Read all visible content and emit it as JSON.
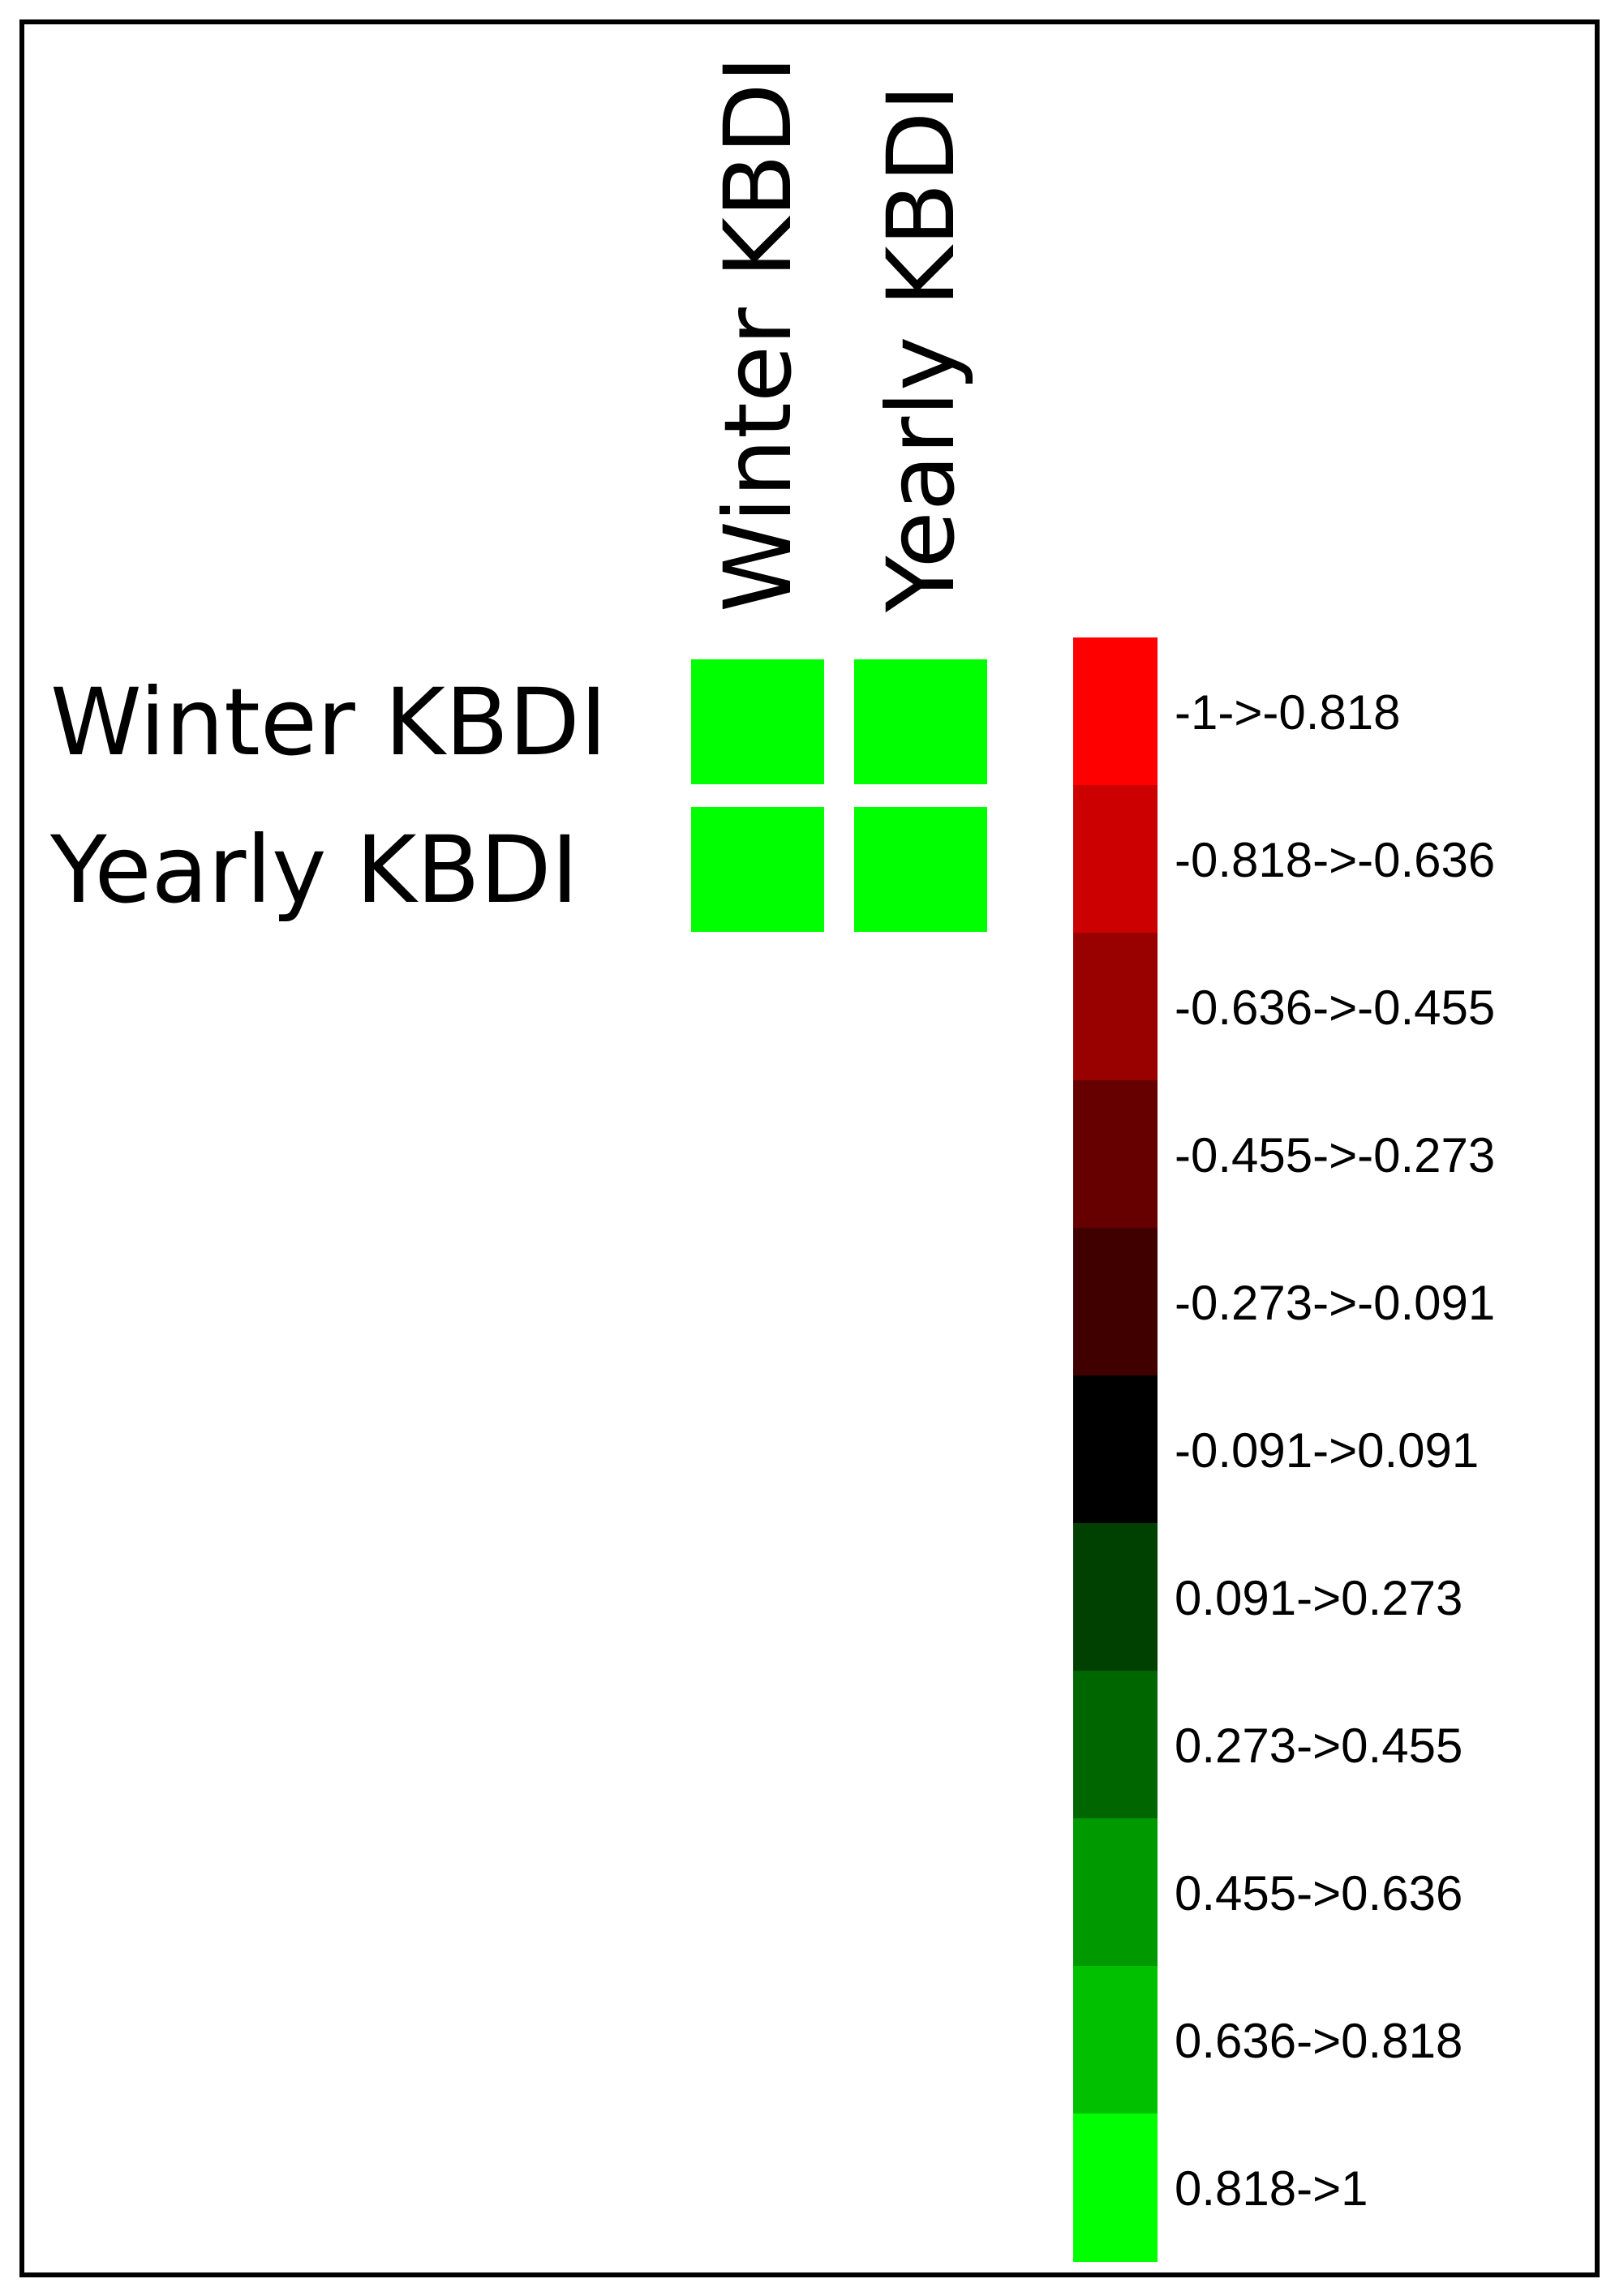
{
  "chart_data": {
    "type": "heatmap",
    "rows": [
      "Winter KBDI",
      "Yearly KBDI"
    ],
    "columns": [
      "Winter KBDI",
      "Yearly KBDI"
    ],
    "cell_colors": [
      [
        "#00ff00",
        "#00ff00"
      ],
      [
        "#00ff00",
        "#00ff00"
      ]
    ],
    "legend": {
      "bins": [
        {
          "label": "-1->-0.818",
          "color": "#ff0000"
        },
        {
          "label": "-0.818->-0.636",
          "color": "#cc0000"
        },
        {
          "label": "-0.636->-0.455",
          "color": "#990000"
        },
        {
          "label": "-0.455->-0.273",
          "color": "#660000"
        },
        {
          "label": "-0.273->-0.091",
          "color": "#400000"
        },
        {
          "label": "-0.091->0.091",
          "color": "#000000"
        },
        {
          "label": "0.091->0.273",
          "color": "#004000"
        },
        {
          "label": "0.273->0.455",
          "color": "#006600"
        },
        {
          "label": "0.455->0.636",
          "color": "#009900"
        },
        {
          "label": "0.636->0.818",
          "color": "#00c000"
        },
        {
          "label": "0.818->1",
          "color": "#00ff00"
        }
      ]
    }
  }
}
